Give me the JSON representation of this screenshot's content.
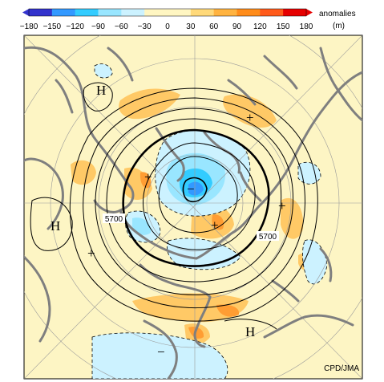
{
  "colorbar": {
    "ticks": [
      "−180",
      "−150",
      "−120",
      "−90",
      "−60",
      "−30",
      "0",
      "30",
      "60",
      "90",
      "120",
      "150",
      "180"
    ],
    "title_line1": "anomalies",
    "title_line2": "(m)",
    "colors": [
      "#3333cc",
      "#3399ff",
      "#33ccff",
      "#99e6ff",
      "#ccf2ff",
      "#fff6c2",
      "#fff6c2",
      "#ffd97a",
      "#ffb340",
      "#ff8c1a",
      "#ff5a1a",
      "#e60000"
    ]
  },
  "map": {
    "background_color": "#fdf5c4",
    "coast_color": "#808080",
    "highs": [
      "H",
      "H",
      "H"
    ],
    "anomaly_signs": [
      "+",
      "+",
      "+",
      "+",
      "+",
      "−",
      "−"
    ],
    "contour_labels": [
      "5700",
      "5700"
    ],
    "credit": "CPD/JMA"
  }
}
